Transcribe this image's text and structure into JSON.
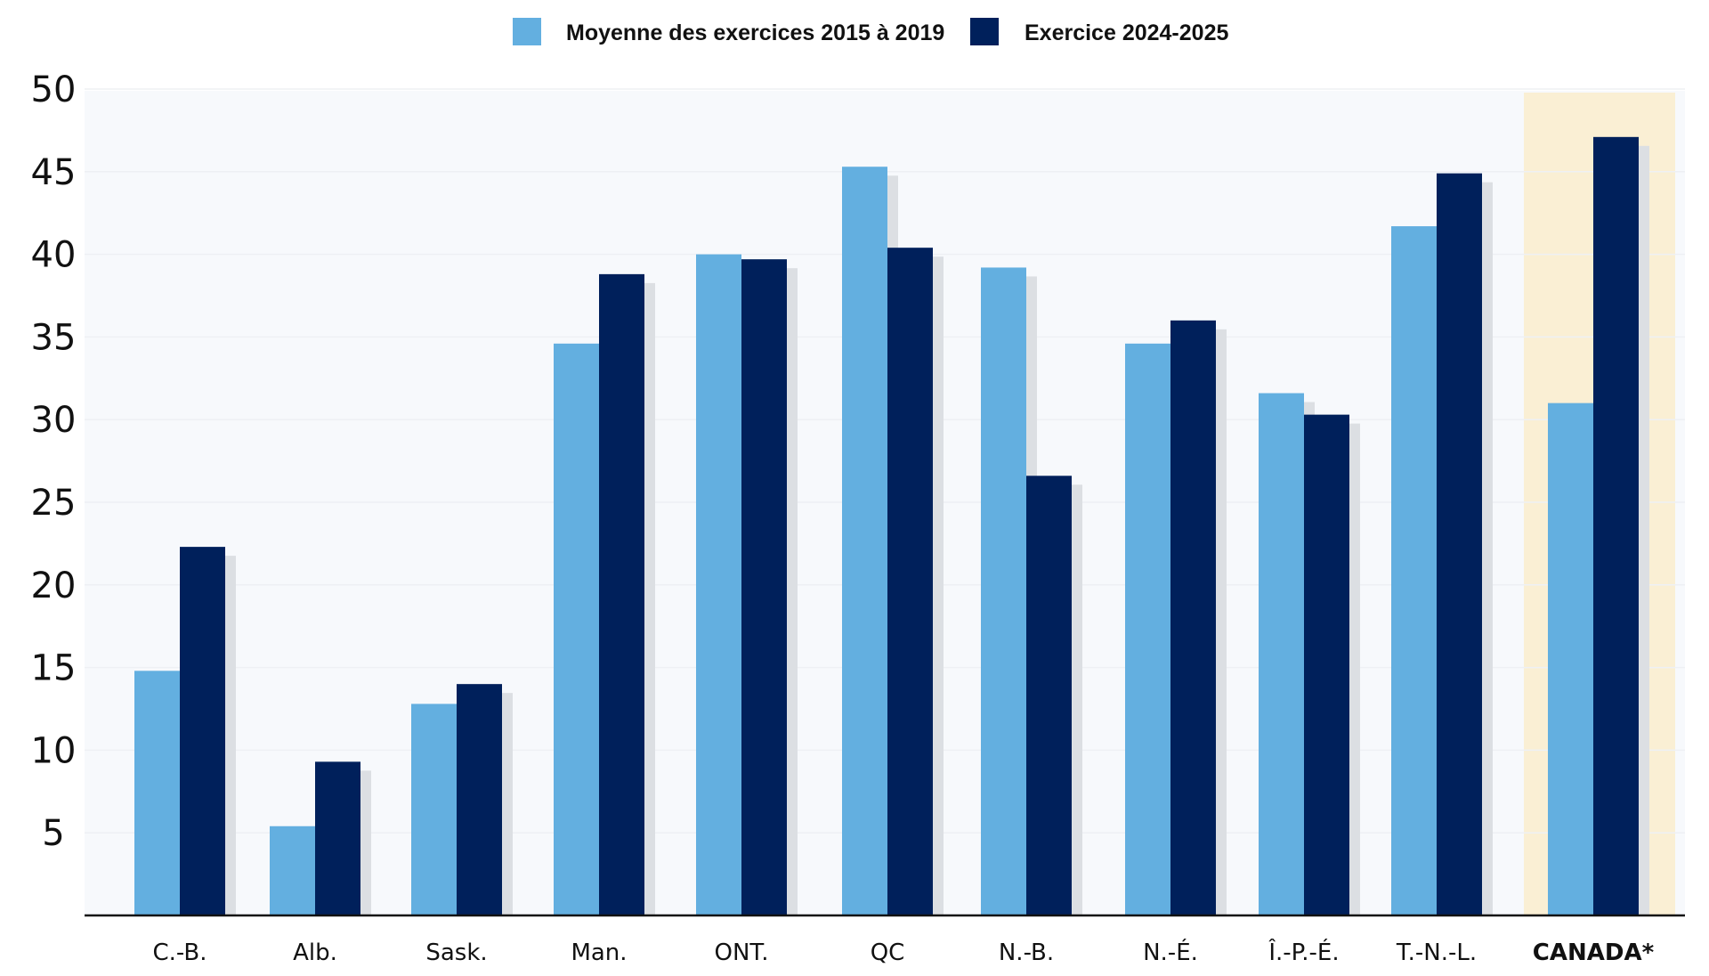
{
  "chart_data": {
    "type": "bar",
    "categories": [
      "C.-B.",
      "Alb.",
      "Sask.",
      "Man.",
      "ONT.",
      "QC",
      "N.-B.",
      "N.-É.",
      "Î.-P.-É.",
      "T.-N.-L.",
      "CANADA*"
    ],
    "highlight_category": "CANADA*",
    "series": [
      {
        "name": "Moyenne des exercices 2015 à 2019",
        "color": "#63afe0",
        "values": [
          14.8,
          5.4,
          12.8,
          34.6,
          40.0,
          45.3,
          39.2,
          34.6,
          31.6,
          41.7,
          31.0
        ]
      },
      {
        "name": "Exercice 2024-2025",
        "color": "#00205b",
        "values": [
          22.3,
          9.3,
          14.0,
          38.8,
          39.7,
          40.4,
          26.6,
          36.0,
          30.3,
          44.9,
          47.1
        ]
      }
    ],
    "yticks": [
      5,
      10,
      15,
      20,
      25,
      30,
      35,
      40,
      45,
      50
    ],
    "ylim": [
      0,
      50
    ],
    "grid": true,
    "legend_position": "top-center",
    "colors": {
      "plot_background": "#f7f9fc",
      "highlight_background": "#faefd4",
      "shadow": "#dcdfe3",
      "axis": "#111111"
    }
  }
}
